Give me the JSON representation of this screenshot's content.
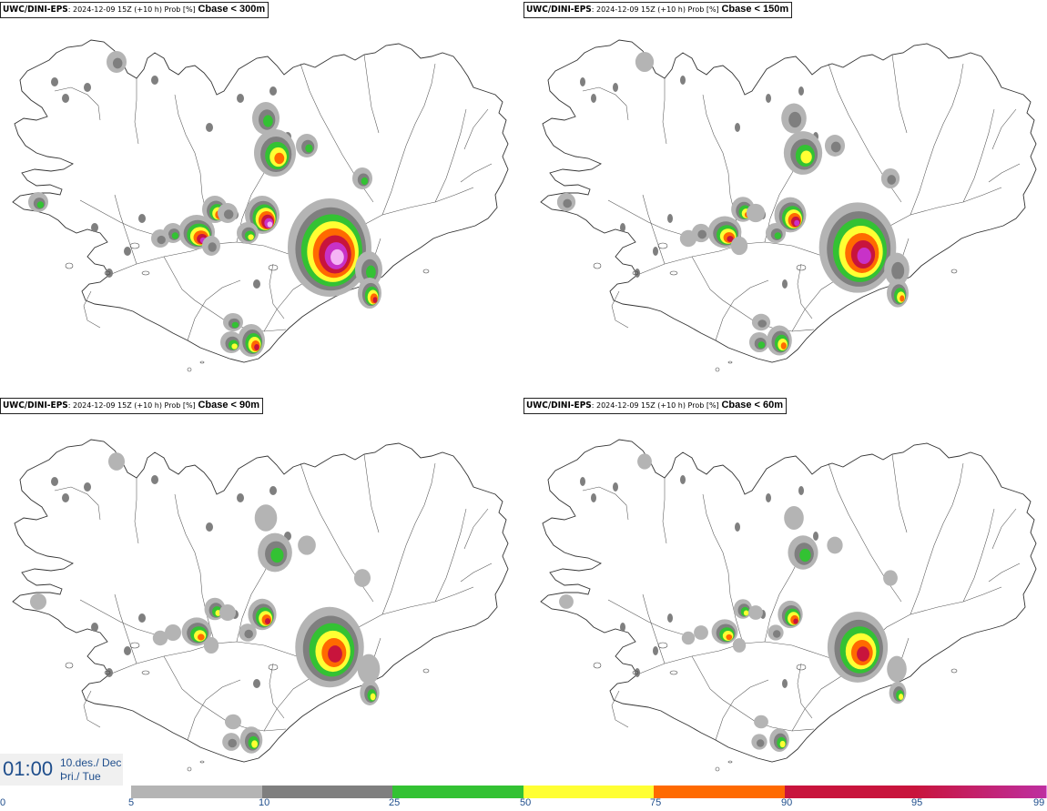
{
  "panels": [
    {
      "source": "UWC/DINI-EPS",
      "meta": ": 2024-12-09 15Z (+10 h) Prob [%]",
      "variable": "Cbase < 300m",
      "level": 3
    },
    {
      "source": "UWC/DINI-EPS",
      "meta": ": 2024-12-09 15Z (+10 h) Prob [%]",
      "variable": "Cbase < 150m",
      "level": 2
    },
    {
      "source": "UWC/DINI-EPS",
      "meta": ": 2024-12-09 15Z (+10 h) Prob [%]",
      "variable": "Cbase < 90m",
      "level": 1
    },
    {
      "source": "UWC/DINI-EPS",
      "meta": ": 2024-12-09 15Z (+10 h) Prob [%]",
      "variable": "Cbase < 60m",
      "level": 0
    }
  ],
  "time": {
    "hour": "01:00",
    "date_line1": "10.des./ Dec",
    "date_line2": "Þri./ Tue"
  },
  "colorbar": {
    "ticks": [
      "0",
      "5",
      "10",
      "25",
      "50",
      "75",
      "90",
      "95",
      "99"
    ],
    "colors": [
      "#b4b4b4",
      "#7f7f7f",
      "#33c233",
      "#ffff33",
      "#ff6a00",
      "#c8143c",
      "#c832c8",
      "#f5b4f5"
    ]
  }
}
